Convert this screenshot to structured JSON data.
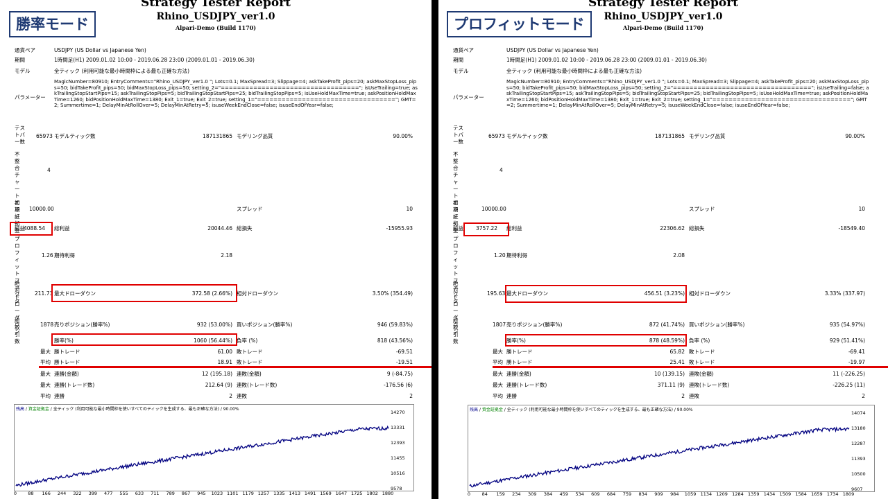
{
  "left": {
    "mode_title": "勝率モード",
    "report": {
      "title": "Strategy Tester Report",
      "subtitle": "Rhino_USDJPY_ver1.0",
      "build": "Alpari-Demo (Build 1170)",
      "pair_label": "通貨ペア",
      "pair_value": "USDJPY (US Dollar vs Japanese Yen)",
      "period_label": "期間",
      "period_value": "1時間足(H1) 2009.01.02 10:00 - 2019.06.28 23:00 (2009.01.01 - 2019.06.30)",
      "model_label": "モデル",
      "model_value": "全ティック (利用可能な最小時間枠による最も正確な方法)",
      "params_label": "パラメーター",
      "params_value": "MagicNumber=80910; EntryComments=\"Rhino_USDJPY_ver1.0 \"; Lots=0.1; MaxSpread=3; Slippage=4; askTakeProfit_pips=20; askMaxStopLoss_pips=50; bidTakeProfit_pips=50; bidMaxStopLoss_pips=50; setting_2=\"==================================\"; isUseTrailing=true; askTrailingStopStartPips=15; askTrailingStopPips=5; bidTrailingStopStartPips=25; bidTrailingStopPips=5; isUseHoldMaxTime=true; askPositionHoldMaxTime=1260; bidPositionHoldMaxTime=1380; Exit_1=true; Exit_2=true; setting_1=\"==================================\"; GMT=2; Summertime=1; DelayMinAtRollOver=5; DelayMinAtRetry=5; isuseWeekEndClose=false; isuseEndOfYear=false;",
      "bars_label": "テストバー数",
      "bars_value": "65973",
      "ticks_label": "モデルティック数",
      "ticks_value": "187131865",
      "quality_label": "モデリング品質",
      "quality_value": "90.00%",
      "mismatch_label": "不整合チャートエラー",
      "mismatch_value": "4",
      "deposit_label": "初期証拠金",
      "deposit_value": "10000.00",
      "spread_label": "スプレッド",
      "spread_value": "10",
      "net_label": "純益",
      "net_value": "4088.54",
      "gross_profit_label": "総利益",
      "gross_profit_value": "20044.46",
      "gross_loss_label": "総損失",
      "gross_loss_value": "-15955.93",
      "pf_label": "プロフィットファクタ",
      "pf_value": "1.26",
      "expected_label": "期待利得",
      "expected_value": "2.18",
      "absdd_label": "絶対ドローダウン",
      "absdd_value": "211.73",
      "maxdd_label": "最大ドローダウン",
      "maxdd_value": "372.58 (2.66%)",
      "reldd_label": "相対ドローダウン",
      "reldd_value": "3.50% (354.49)",
      "total_label": "総取引数",
      "total_value": "1878",
      "short_label": "売りポジション(勝率%)",
      "short_value": "932 (53.00%)",
      "long_label": "買いポジション(勝率%)",
      "long_value": "946 (59.83%)",
      "winrate_label": "勝率(%)",
      "winrate_value": "1060 (56.44%)",
      "lossrate_label": "負率 (%)",
      "lossrate_value": "818 (43.56%)",
      "max_label": "最大",
      "avg_label": "平均",
      "maxwin_label": "勝トレード",
      "maxwin_value": "61.00",
      "maxloss_label": "敗トレード",
      "maxloss_value": "-69.51",
      "avgwin_label": "勝トレード",
      "avgwin_value": "18.91",
      "avgloss_label": "敗トレード",
      "avgloss_value": "-19.51",
      "consec_win_money_label": "連勝(金額)",
      "consec_win_money_value": "12 (195.18)",
      "consec_loss_money_label": "連敗(金額)",
      "consec_loss_money_value": "9 (-84.75)",
      "consec_win_count_label": "連勝(トレード数)",
      "consec_win_count_value": "212.64 (9)",
      "consec_loss_count_label": "連敗(トレード数)",
      "consec_loss_count_value": "-176.56 (6)",
      "avg_consec_win_label": "連勝",
      "avg_consec_win_value": "2",
      "avg_consec_loss_label": "連敗",
      "avg_consec_loss_value": "2"
    },
    "chart": {
      "legend_a": "残高",
      "legend_sep": " / ",
      "legend_b": "資金証拠金",
      "legend_rest": " / 全ティック (利用可能な最小時間枠を使いすべてのティックを生成する、最も正確な方法) / 90.00%",
      "yticks": [
        "14270",
        "13331",
        "12393",
        "11455",
        "10516",
        "9578"
      ],
      "xticks": [
        "0",
        "88",
        "166",
        "244",
        "322",
        "399",
        "477",
        "555",
        "633",
        "711",
        "789",
        "867",
        "945",
        "1023",
        "1101",
        "1179",
        "1257",
        "1335",
        "1413",
        "1491",
        "1569",
        "1647",
        "1725",
        "1802",
        "1880"
      ],
      "ylim": [
        9578,
        14270
      ],
      "line_color": "#000080"
    }
  },
  "right": {
    "mode_title": "プロフィットモード",
    "report": {
      "title": "Strategy Tester Report",
      "subtitle": "Rhino_USDJPY_ver1.0",
      "build": "Alpari-Demo (Build 1170)",
      "pair_label": "通貨ペア",
      "pair_value": "USDJPY (US Dollar vs Japanese Yen)",
      "period_label": "期間",
      "period_value": "1時間足(H1) 2009.01.02 10:00 - 2019.06.28 23:00 (2009.01.01 - 2019.06.30)",
      "model_label": "モデル",
      "model_value": "全ティック (利用可能な最小時間枠による最も正確な方法)",
      "params_label": "パラメーター",
      "params_value": "MagicNumber=80910; EntryComments=\"Rhino_USDJPY_ver1.0 \"; Lots=0.1; MaxSpread=3; Slippage=4; askTakeProfit_pips=20; askMaxStopLoss_pips=50; bidTakeProfit_pips=50; bidMaxStopLoss_pips=50; setting_2=\"==================================\"; isUseTrailing=false; askTrailingStopStartPips=15; askTrailingStopPips=5; bidTrailingStopStartPips=25; bidTrailingStopPips=5; isUseHoldMaxTime=true; askPositionHoldMaxTime=1260; bidPositionHoldMaxTime=1380; Exit_1=true; Exit_2=true; setting_1=\"==================================\"; GMT=2; Summertime=1; DelayMinAtRollOver=5; DelayMinAtRetry=5; isuseWeekEndClose=false; isuseEndOfYear=false;",
      "bars_label": "テストバー数",
      "bars_value": "65973",
      "ticks_label": "モデルティック数",
      "ticks_value": "187131865",
      "quality_label": "モデリング品質",
      "quality_value": "90.00%",
      "mismatch_label": "不整合チャートエラー",
      "mismatch_value": "4",
      "deposit_label": "初期証拠金",
      "deposit_value": "10000.00",
      "spread_label": "スプレッド",
      "spread_value": "10",
      "net_label": "純益",
      "net_value": "3757.22",
      "gross_profit_label": "総利益",
      "gross_profit_value": "22306.62",
      "gross_loss_label": "総損失",
      "gross_loss_value": "-18549.40",
      "pf_label": "プロフィットファクタ",
      "pf_value": "1.20",
      "expected_label": "期待利得",
      "expected_value": "2.08",
      "absdd_label": "絶対ドローダウン",
      "absdd_value": "195.63",
      "maxdd_label": "最大ドローダウン",
      "maxdd_value": "456.51 (3.23%)",
      "reldd_label": "相対ドローダウン",
      "reldd_value": "3.33% (337.97)",
      "total_label": "総取引数",
      "total_value": "1807",
      "short_label": "売りポジション(勝率%)",
      "short_value": "872 (41.74%)",
      "long_label": "買いポジション(勝率%)",
      "long_value": "935 (54.97%)",
      "winrate_label": "勝率(%)",
      "winrate_value": "878 (48.59%)",
      "lossrate_label": "負率 (%)",
      "lossrate_value": "929 (51.41%)",
      "max_label": "最大",
      "avg_label": "平均",
      "maxwin_label": "勝トレード",
      "maxwin_value": "65.82",
      "maxloss_label": "敗トレード",
      "maxloss_value": "-69.41",
      "avgwin_label": "勝トレード",
      "avgwin_value": "25.41",
      "avgloss_label": "敗トレード",
      "avgloss_value": "-19.97",
      "consec_win_money_label": "連勝(金額)",
      "consec_win_money_value": "10 (139.15)",
      "consec_loss_money_label": "連敗(金額)",
      "consec_loss_money_value": "11 (-226.25)",
      "consec_win_count_label": "連勝(トレード数)",
      "consec_win_count_value": "371.11 (9)",
      "consec_loss_count_label": "連敗(トレード数)",
      "consec_loss_count_value": "-226.25 (11)",
      "avg_consec_win_label": "連勝",
      "avg_consec_win_value": "2",
      "avg_consec_loss_label": "連敗",
      "avg_consec_loss_value": "2"
    },
    "chart": {
      "legend_a": "残高",
      "legend_sep": " / ",
      "legend_b": "資金証拠金",
      "legend_rest": " / 全ティック (利用可能な最小時間枠を使いすべてのティックを生成する、最も正確な方法) / 90.00%",
      "yticks": [
        "14074",
        "13180",
        "12287",
        "11393",
        "10500",
        "9607"
      ],
      "xticks": [
        "0",
        "84",
        "159",
        "234",
        "309",
        "384",
        "459",
        "534",
        "609",
        "684",
        "759",
        "834",
        "909",
        "984",
        "1059",
        "1134",
        "1209",
        "1284",
        "1359",
        "1434",
        "1509",
        "1584",
        "1659",
        "1734",
        "1809"
      ],
      "ylim": [
        9607,
        14074
      ],
      "line_color": "#000080"
    }
  }
}
